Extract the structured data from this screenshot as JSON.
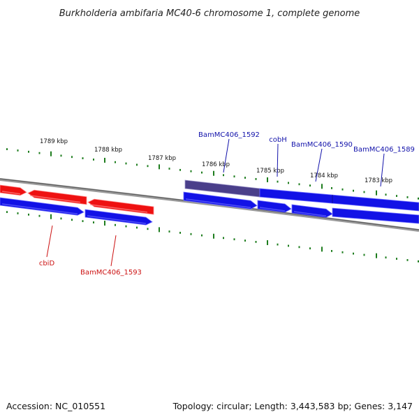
{
  "title": "Burkholderia ambifaria MC40-6 chromosome 1, complete genome",
  "accession": "Accession: NC_010551",
  "summary": "Topology: circular; Length: 3,443,583 bp; Genes: 3,147",
  "colors": {
    "backbone": "#7a7a7a",
    "tick": "#1e7d1e",
    "forward_gene": "#1212e6",
    "reverse_gene": "#ee1111",
    "selected_gene": "#4a3f8a",
    "forward_label": "#1111aa",
    "reverse_label": "#cc1111"
  },
  "ticks": [
    {
      "label": "1789 kbp"
    },
    {
      "label": "1788 kbp"
    },
    {
      "label": "1787 kbp"
    },
    {
      "label": "1786 kbp"
    },
    {
      "label": "1785 kbp"
    },
    {
      "label": "1784 kbp"
    },
    {
      "label": "1783 kbp"
    }
  ],
  "genes": [
    {
      "name": "BamMC406_1592",
      "strand": "forward",
      "selected": true
    },
    {
      "name": "cobH",
      "strand": "forward"
    },
    {
      "name": "BamMC406_1590",
      "strand": "forward"
    },
    {
      "name": "BamMC406_1589",
      "strand": "forward"
    },
    {
      "name": "cbiD",
      "strand": "reverse"
    },
    {
      "name": "BamMC406_1593",
      "strand": "reverse"
    }
  ]
}
